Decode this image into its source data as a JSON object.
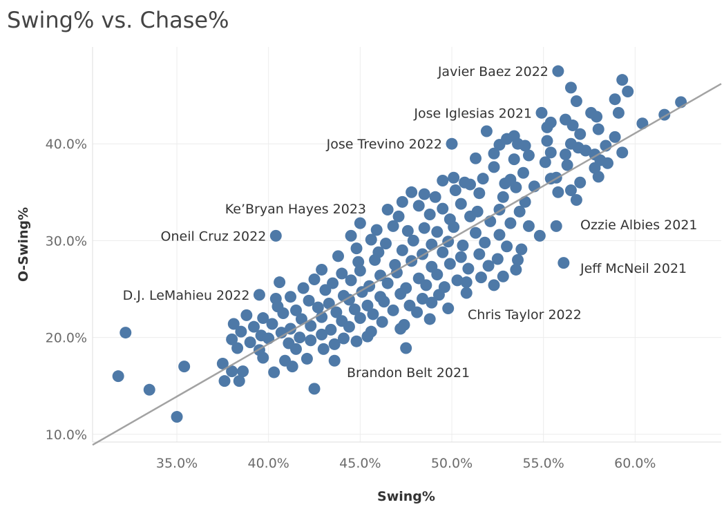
{
  "chart_data": {
    "type": "scatter",
    "title": "Swing% vs. Chase%",
    "xlabel": "Swing%",
    "ylabel": "O-Swing%",
    "xlim": [
      30.4,
      64.7
    ],
    "ylim": [
      9.2,
      50.0
    ],
    "x_ticks": [
      35,
      40,
      45,
      50,
      55,
      60
    ],
    "y_ticks": [
      10,
      20,
      30,
      40
    ],
    "x_tick_labels": [
      "35.0%",
      "40.0%",
      "45.0%",
      "50.0%",
      "55.0%",
      "60.0%"
    ],
    "y_tick_labels": [
      "10.0%",
      "20.0%",
      "30.0%",
      "40.0%"
    ],
    "grid": true,
    "colors": {
      "points": "#4e79a7",
      "trendline": "#999999",
      "grid": "#ececec"
    },
    "trendline": {
      "x": [
        30.4,
        64.7
      ],
      "y": [
        8.9,
        46.2
      ]
    },
    "annotations": [
      {
        "label": "Javier Baez 2022",
        "x": 55.8,
        "y": 47.5
      },
      {
        "label": "Jose Iglesias 2021",
        "x": 54.9,
        "y": 43.2
      },
      {
        "label": "Jose Trevino 2022",
        "x": 50.0,
        "y": 40.0
      },
      {
        "label": "Ke’Bryan Hayes 2023",
        "x": 45.0,
        "y": 31.8
      },
      {
        "label": "Oneil Cruz 2022",
        "x": 40.4,
        "y": 30.5
      },
      {
        "label": "Ozzie Albies 2021",
        "x": 55.7,
        "y": 31.5
      },
      {
        "label": "Jeff McNeil 2021",
        "x": 56.1,
        "y": 27.7
      },
      {
        "label": "D.J. LeMahieu 2022",
        "x": 39.5,
        "y": 24.4
      },
      {
        "label": "Chris Taylor 2022",
        "x": 49.8,
        "y": 23.0
      },
      {
        "label": "Brandon Belt 2021",
        "x": 47.5,
        "y": 18.9
      }
    ],
    "points": [
      [
        55.8,
        47.5
      ],
      [
        59.3,
        46.6
      ],
      [
        59.6,
        45.4
      ],
      [
        56.5,
        45.8
      ],
      [
        58.9,
        44.6
      ],
      [
        56.8,
        44.4
      ],
      [
        62.5,
        44.3
      ],
      [
        57.6,
        43.2
      ],
      [
        57.9,
        42.8
      ],
      [
        59.1,
        43.2
      ],
      [
        54.9,
        43.2
      ],
      [
        55.4,
        42.2
      ],
      [
        56.2,
        42.5
      ],
      [
        56.6,
        41.9
      ],
      [
        55.2,
        41.7
      ],
      [
        57.0,
        41.0
      ],
      [
        58.0,
        41.5
      ],
      [
        60.4,
        42.1
      ],
      [
        61.6,
        43.0
      ],
      [
        51.9,
        41.3
      ],
      [
        53.4,
        40.8
      ],
      [
        58.9,
        40.7
      ],
      [
        55.2,
        40.3
      ],
      [
        56.5,
        40.0
      ],
      [
        56.9,
        39.6
      ],
      [
        57.3,
        39.3
      ],
      [
        58.4,
        39.8
      ],
      [
        50.0,
        40.0
      ],
      [
        54.0,
        39.8
      ],
      [
        52.6,
        39.9
      ],
      [
        53.6,
        40.0
      ],
      [
        53.0,
        40.5
      ],
      [
        59.3,
        39.1
      ],
      [
        55.4,
        39.1
      ],
      [
        56.2,
        38.9
      ],
      [
        52.3,
        39.0
      ],
      [
        57.8,
        38.9
      ],
      [
        51.3,
        38.5
      ],
      [
        54.2,
        38.8
      ],
      [
        53.4,
        38.4
      ],
      [
        55.1,
        38.1
      ],
      [
        56.3,
        37.8
      ],
      [
        58.1,
        38.3
      ],
      [
        57.8,
        37.5
      ],
      [
        58.5,
        38.0
      ],
      [
        52.3,
        37.6
      ],
      [
        53.9,
        37.0
      ],
      [
        55.7,
        36.5
      ],
      [
        53.2,
        36.3
      ],
      [
        55.4,
        36.4
      ],
      [
        57.0,
        36.0
      ],
      [
        58.0,
        36.6
      ],
      [
        49.5,
        36.2
      ],
      [
        50.7,
        36.0
      ],
      [
        50.1,
        36.5
      ],
      [
        51.0,
        35.8
      ],
      [
        51.7,
        36.4
      ],
      [
        52.9,
        35.9
      ],
      [
        53.5,
        35.5
      ],
      [
        54.5,
        35.6
      ],
      [
        55.8,
        35.0
      ],
      [
        56.5,
        35.2
      ],
      [
        47.8,
        35.0
      ],
      [
        48.5,
        34.8
      ],
      [
        49.1,
        34.5
      ],
      [
        50.2,
        35.2
      ],
      [
        51.5,
        34.9
      ],
      [
        52.8,
        34.5
      ],
      [
        54.0,
        34.0
      ],
      [
        56.8,
        34.2
      ],
      [
        47.3,
        34.0
      ],
      [
        48.2,
        33.6
      ],
      [
        49.5,
        33.3
      ],
      [
        50.5,
        33.8
      ],
      [
        51.4,
        33.0
      ],
      [
        52.6,
        33.2
      ],
      [
        53.7,
        33.0
      ],
      [
        46.5,
        33.2
      ],
      [
        47.1,
        32.5
      ],
      [
        48.8,
        32.7
      ],
      [
        49.9,
        32.2
      ],
      [
        51.0,
        32.5
      ],
      [
        52.1,
        32.0
      ],
      [
        53.2,
        31.8
      ],
      [
        54.2,
        31.5
      ],
      [
        45.0,
        31.8
      ],
      [
        45.9,
        31.1
      ],
      [
        46.8,
        31.5
      ],
      [
        47.6,
        31.0
      ],
      [
        48.5,
        31.3
      ],
      [
        49.2,
        30.9
      ],
      [
        50.1,
        31.4
      ],
      [
        51.3,
        30.8
      ],
      [
        52.6,
        30.6
      ],
      [
        54.8,
        30.5
      ],
      [
        55.7,
        31.5
      ],
      [
        40.4,
        30.5
      ],
      [
        44.5,
        30.5
      ],
      [
        45.6,
        30.1
      ],
      [
        46.4,
        29.7
      ],
      [
        47.9,
        30.0
      ],
      [
        48.9,
        29.6
      ],
      [
        49.8,
        29.9
      ],
      [
        50.6,
        29.5
      ],
      [
        51.8,
        29.8
      ],
      [
        53.0,
        29.4
      ],
      [
        44.8,
        29.2
      ],
      [
        46.0,
        28.8
      ],
      [
        47.3,
        29.0
      ],
      [
        48.4,
        28.6
      ],
      [
        49.5,
        28.8
      ],
      [
        50.5,
        28.3
      ],
      [
        51.5,
        28.6
      ],
      [
        52.5,
        28.1
      ],
      [
        53.8,
        29.1
      ],
      [
        43.8,
        28.4
      ],
      [
        44.9,
        27.8
      ],
      [
        45.8,
        28.0
      ],
      [
        46.9,
        27.5
      ],
      [
        47.8,
        27.9
      ],
      [
        48.9,
        27.3
      ],
      [
        49.9,
        27.6
      ],
      [
        50.9,
        27.1
      ],
      [
        52.0,
        27.4
      ],
      [
        53.6,
        28.0
      ],
      [
        56.1,
        27.7
      ],
      [
        42.9,
        27.0
      ],
      [
        44.0,
        26.6
      ],
      [
        45.0,
        26.9
      ],
      [
        46.1,
        26.4
      ],
      [
        47.0,
        26.7
      ],
      [
        48.2,
        26.1
      ],
      [
        49.2,
        26.5
      ],
      [
        50.3,
        25.9
      ],
      [
        51.6,
        26.2
      ],
      [
        52.8,
        26.3
      ],
      [
        53.5,
        27.0
      ],
      [
        42.5,
        26.0
      ],
      [
        43.5,
        25.6
      ],
      [
        44.5,
        25.9
      ],
      [
        45.5,
        25.3
      ],
      [
        46.5,
        25.6
      ],
      [
        47.5,
        25.1
      ],
      [
        48.6,
        25.4
      ],
      [
        49.6,
        25.2
      ],
      [
        50.8,
        25.7
      ],
      [
        52.3,
        25.4
      ],
      [
        40.6,
        25.7
      ],
      [
        41.9,
        25.1
      ],
      [
        43.1,
        24.9
      ],
      [
        44.1,
        24.3
      ],
      [
        45.1,
        24.7
      ],
      [
        46.1,
        24.2
      ],
      [
        47.2,
        24.5
      ],
      [
        48.4,
        24.0
      ],
      [
        49.3,
        24.4
      ],
      [
        50.8,
        24.6
      ],
      [
        39.5,
        24.4
      ],
      [
        40.4,
        24.0
      ],
      [
        41.2,
        24.2
      ],
      [
        42.2,
        23.8
      ],
      [
        43.3,
        23.5
      ],
      [
        44.4,
        23.9
      ],
      [
        45.4,
        23.3
      ],
      [
        46.3,
        23.7
      ],
      [
        47.7,
        23.3
      ],
      [
        48.9,
        23.6
      ],
      [
        40.5,
        23.2
      ],
      [
        41.5,
        22.8
      ],
      [
        42.7,
        23.1
      ],
      [
        43.7,
        22.6
      ],
      [
        44.7,
        22.9
      ],
      [
        45.7,
        22.4
      ],
      [
        46.8,
        22.8
      ],
      [
        48.1,
        22.6
      ],
      [
        49.8,
        23.0
      ],
      [
        38.8,
        22.3
      ],
      [
        39.7,
        22.0
      ],
      [
        40.8,
        22.5
      ],
      [
        41.8,
        21.9
      ],
      [
        42.9,
        22.1
      ],
      [
        44.0,
        21.7
      ],
      [
        45.0,
        22.0
      ],
      [
        46.2,
        21.6
      ],
      [
        47.4,
        21.3
      ],
      [
        48.8,
        21.9
      ],
      [
        38.1,
        21.4
      ],
      [
        39.2,
        21.1
      ],
      [
        40.2,
        21.4
      ],
      [
        41.2,
        20.9
      ],
      [
        42.3,
        21.2
      ],
      [
        43.4,
        20.8
      ],
      [
        44.4,
        21.1
      ],
      [
        45.6,
        20.6
      ],
      [
        47.2,
        20.9
      ],
      [
        38.5,
        20.6
      ],
      [
        39.6,
        20.2
      ],
      [
        40.7,
        20.5
      ],
      [
        41.7,
        20.0
      ],
      [
        42.9,
        20.3
      ],
      [
        44.1,
        19.9
      ],
      [
        45.4,
        20.1
      ],
      [
        32.2,
        20.5
      ],
      [
        38.0,
        19.8
      ],
      [
        39.0,
        19.5
      ],
      [
        40.0,
        19.9
      ],
      [
        41.1,
        19.4
      ],
      [
        42.3,
        19.7
      ],
      [
        43.6,
        19.3
      ],
      [
        44.8,
        19.6
      ],
      [
        47.5,
        18.9
      ],
      [
        38.3,
        18.9
      ],
      [
        39.5,
        18.7
      ],
      [
        41.5,
        18.8
      ],
      [
        43.0,
        18.8
      ],
      [
        39.7,
        17.9
      ],
      [
        40.9,
        17.6
      ],
      [
        42.1,
        17.8
      ],
      [
        43.6,
        17.6
      ],
      [
        37.5,
        17.3
      ],
      [
        38.0,
        16.5
      ],
      [
        38.6,
        16.5
      ],
      [
        40.3,
        16.4
      ],
      [
        41.3,
        17.0
      ],
      [
        37.6,
        15.5
      ],
      [
        38.4,
        15.5
      ],
      [
        35.4,
        17.0
      ],
      [
        31.8,
        16.0
      ],
      [
        33.5,
        14.6
      ],
      [
        42.5,
        14.7
      ],
      [
        35.0,
        11.8
      ]
    ]
  }
}
